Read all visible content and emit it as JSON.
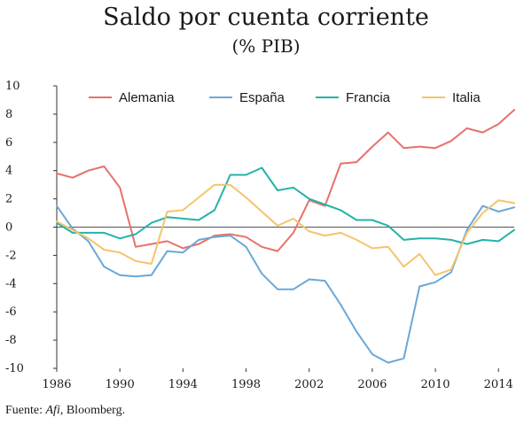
{
  "header": {
    "title": "Saldo por cuenta corriente",
    "subtitle": "(% PIB)"
  },
  "footer": {
    "source_prefix": "Fuente: ",
    "source_italic": "Afi",
    "source_suffix": ", Bloomberg."
  },
  "chart_data": {
    "type": "line",
    "title": "Saldo por cuenta corriente",
    "subtitle": "(% PIB)",
    "xlabel": "",
    "ylabel": "",
    "xlim": [
      1986,
      2015
    ],
    "ylim": [
      -10,
      10
    ],
    "x_ticks": [
      1986,
      1990,
      1994,
      1998,
      2002,
      2006,
      2010,
      2014
    ],
    "y_ticks": [
      -10,
      -8,
      -6,
      -4,
      -2,
      0,
      2,
      4,
      6,
      8,
      10
    ],
    "grid": false,
    "legend_position": "top",
    "x": [
      1986,
      1987,
      1988,
      1989,
      1990,
      1991,
      1992,
      1993,
      1994,
      1995,
      1996,
      1997,
      1998,
      1999,
      2000,
      2001,
      2002,
      2003,
      2004,
      2005,
      2006,
      2007,
      2008,
      2009,
      2010,
      2011,
      2012,
      2013,
      2014,
      2015
    ],
    "series": [
      {
        "name": "Alemania",
        "color": "#e8706a",
        "values": [
          3.8,
          3.5,
          4.0,
          4.3,
          2.8,
          -1.4,
          -1.2,
          -1.0,
          -1.5,
          -1.2,
          -0.6,
          -0.5,
          -0.7,
          -1.4,
          -1.7,
          -0.4,
          1.9,
          1.5,
          4.5,
          4.6,
          5.7,
          6.7,
          5.6,
          5.7,
          5.6,
          6.1,
          7.0,
          6.7,
          7.3,
          8.3
        ]
      },
      {
        "name": "España",
        "color": "#6aa8d8",
        "values": [
          1.5,
          -0.1,
          -1.0,
          -2.8,
          -3.4,
          -3.5,
          -3.4,
          -1.7,
          -1.8,
          -0.9,
          -0.7,
          -0.6,
          -1.4,
          -3.3,
          -4.4,
          -4.4,
          -3.7,
          -3.8,
          -5.5,
          -7.4,
          -9.0,
          -9.6,
          -9.3,
          -4.2,
          -3.9,
          -3.2,
          -0.2,
          1.5,
          1.1,
          1.4
        ]
      },
      {
        "name": "Francia",
        "color": "#24b3a8",
        "values": [
          0.3,
          -0.4,
          -0.4,
          -0.4,
          -0.8,
          -0.5,
          0.3,
          0.7,
          0.6,
          0.5,
          1.2,
          3.7,
          3.7,
          4.2,
          2.6,
          2.8,
          2.0,
          1.6,
          1.2,
          0.5,
          0.5,
          0.1,
          -0.9,
          -0.8,
          -0.8,
          -0.9,
          -1.2,
          -0.9,
          -1.0,
          -0.2
        ]
      },
      {
        "name": "Italia",
        "color": "#f5c46a",
        "values": [
          0.4,
          -0.2,
          -0.8,
          -1.6,
          -1.8,
          -2.4,
          -2.6,
          1.1,
          1.2,
          2.1,
          3.0,
          3.0,
          2.1,
          1.1,
          0.1,
          0.6,
          -0.3,
          -0.6,
          -0.4,
          -0.9,
          -1.5,
          -1.4,
          -2.8,
          -1.9,
          -3.4,
          -3.0,
          -0.4,
          1.0,
          1.9,
          1.7
        ]
      }
    ]
  }
}
